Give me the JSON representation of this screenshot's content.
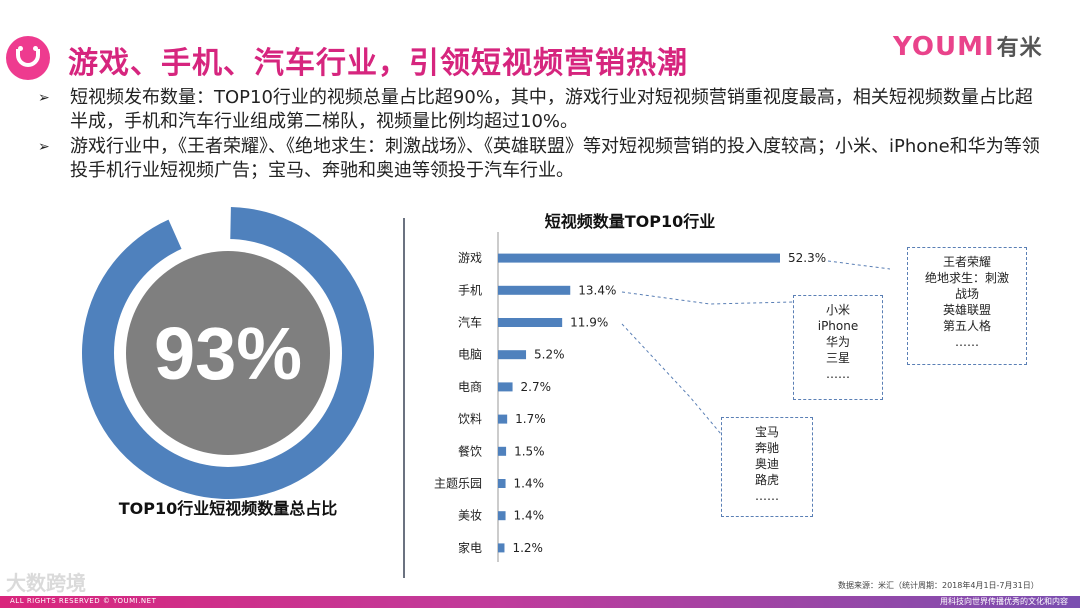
{
  "header": {
    "title": "游戏、手机、汽车行业，引领短视频营销热潮",
    "brand_latin": "YOUMI",
    "brand_cn": "有米"
  },
  "bullets": [
    "短视频发布数量：TOP10行业的视频总量占比超90%，其中，游戏行业对短视频营销重视度最高，相关短视频数量占比超半成，手机和汽车行业组成第二梯队，视频量比例均超过10%。",
    "游戏行业中，《王者荣耀》、《绝地求生：刺激战场》、《英雄联盟》等对短视频营销的投入度较高；小米、iPhone和华为等领投手机行业短视频广告；宝马、奔驰和奥迪等领投于汽车行业。"
  ],
  "donut": {
    "value_label": "93%",
    "value": 93,
    "caption": "TOP10行业短视频数量总占比"
  },
  "chart_data": {
    "type": "bar",
    "orientation": "horizontal",
    "title": "短视频数量TOP10行业",
    "categories": [
      "游戏",
      "手机",
      "汽车",
      "电脑",
      "电商",
      "饮料",
      "餐饮",
      "主题乐园",
      "美妆",
      "家电"
    ],
    "values": [
      52.3,
      13.4,
      11.9,
      5.2,
      2.7,
      1.7,
      1.5,
      1.4,
      1.4,
      1.2
    ],
    "value_labels": [
      "52.3%",
      "13.4%",
      "11.9%",
      "5.2%",
      "2.7%",
      "1.7%",
      "1.5%",
      "1.4%",
      "1.4%",
      "1.2%"
    ],
    "bar_color": "#4f81bd"
  },
  "callouts": {
    "games": [
      "王者荣耀",
      "绝地求生：刺激",
      "战场",
      "英雄联盟",
      "第五人格",
      "……"
    ],
    "phones": [
      "小米",
      "iPhone",
      "华为",
      "三星",
      "……"
    ],
    "cars": [
      "宝马",
      "奔驰",
      "奥迪",
      "路虎",
      "……"
    ]
  },
  "source": "数据来源：米汇（统计周期：2018年4月1日-7月31日）",
  "footer": {
    "left": "ALL RIGHTS RESERVED © YOUMI.NET",
    "right": "用科技向世界传播优秀的文化和内容",
    "watermark": "大数跨境"
  },
  "colors": {
    "accent": "#d6257e",
    "donut_ring": "#4f81bd",
    "donut_core": "#7f7f7f"
  }
}
